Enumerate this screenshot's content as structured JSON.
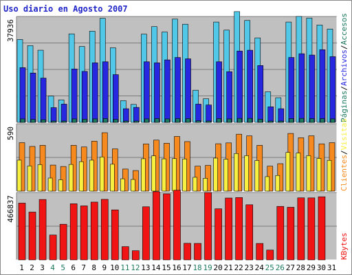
{
  "title": "Uso diario en Agosto 2007",
  "colors": {
    "paginas": "#1c7a5e",
    "archivos": "#2727e0",
    "accesos": "#52c8e8",
    "visitas": "#f78a1e",
    "clientes": "#f8f040",
    "kbytes": "#f01414",
    "weekend_day": "#1c7a5e",
    "weekday": "#000000",
    "panel_bg": "#c0c0c0"
  },
  "chart_data": [
    {
      "type": "bar",
      "panel": "top",
      "ytick": "37936",
      "ymax": 37936,
      "legend": [
        "Páginas",
        "/",
        "Archivos",
        "/",
        "Accesos"
      ],
      "categories": [
        "1",
        "2",
        "3",
        "4",
        "5",
        "6",
        "7",
        "8",
        "9",
        "10",
        "11",
        "12",
        "13",
        "14",
        "15",
        "16",
        "17",
        "18",
        "19",
        "20",
        "21",
        "22",
        "23",
        "24",
        "25",
        "26",
        "27",
        "28",
        "29",
        "30",
        "31"
      ],
      "series": [
        {
          "name": "Accesos",
          "values": [
            30900,
            28600,
            26900,
            9800,
            8400,
            33000,
            28300,
            34000,
            38800,
            27800,
            8100,
            6700,
            32900,
            35700,
            33700,
            38500,
            36600,
            12000,
            8800,
            37400,
            34400,
            41300,
            38000,
            31500,
            11400,
            9200,
            37400,
            39500,
            38900,
            36300,
            34800
          ]
        },
        {
          "name": "Archivos",
          "values": [
            20400,
            18400,
            16500,
            5500,
            6800,
            19900,
            19000,
            22200,
            22600,
            17800,
            5100,
            5600,
            22600,
            22200,
            23300,
            24200,
            23700,
            6800,
            6500,
            22600,
            18900,
            26600,
            26900,
            21200,
            5800,
            5100,
            24200,
            25600,
            25100,
            27100,
            24500
          ]
        },
        {
          "name": "Páginas",
          "values": [
            1300,
            1100,
            1000,
            500,
            500,
            1300,
            1200,
            1300,
            1400,
            1100,
            500,
            400,
            1300,
            1400,
            1300,
            1400,
            1400,
            600,
            500,
            1400,
            1300,
            1500,
            1500,
            1200,
            500,
            500,
            1400,
            1500,
            1400,
            1400,
            1300
          ]
        }
      ]
    },
    {
      "type": "bar",
      "panel": "middle",
      "ytick": "590",
      "ymax": 590,
      "legend": [
        "Clientes",
        "/",
        "Visitas"
      ],
      "categories": [
        "1",
        "2",
        "3",
        "4",
        "5",
        "6",
        "7",
        "8",
        "9",
        "10",
        "11",
        "12",
        "13",
        "14",
        "15",
        "16",
        "17",
        "18",
        "19",
        "20",
        "21",
        "22",
        "23",
        "24",
        "25",
        "26",
        "27",
        "28",
        "29",
        "30",
        "31"
      ],
      "series": [
        {
          "name": "Visitas",
          "values": [
            452,
            417,
            427,
            243,
            230,
            427,
            412,
            466,
            545,
            394,
            206,
            192,
            440,
            476,
            447,
            510,
            462,
            233,
            240,
            442,
            450,
            531,
            515,
            427,
            233,
            256,
            538,
            498,
            516,
            441,
            452
          ]
        },
        {
          "name": "Clientes",
          "values": [
            289,
            235,
            247,
            122,
            106,
            249,
            275,
            289,
            319,
            251,
            115,
            109,
            302,
            329,
            301,
            303,
            300,
            129,
            120,
            308,
            298,
            351,
            331,
            286,
            135,
            146,
            361,
            355,
            331,
            305,
            287
          ]
        }
      ]
    },
    {
      "type": "bar",
      "panel": "bottom",
      "ytick": "466837",
      "ymax": 466837,
      "legend": [
        "KBytes"
      ],
      "categories": [
        "1",
        "2",
        "3",
        "4",
        "5",
        "6",
        "7",
        "8",
        "9",
        "10",
        "11",
        "12",
        "13",
        "14",
        "15",
        "16",
        "17",
        "18",
        "19",
        "20",
        "21",
        "22",
        "23",
        "24",
        "25",
        "26",
        "27",
        "28",
        "29",
        "30",
        "31"
      ],
      "series": [
        {
          "name": "KBytes",
          "values": [
            418800,
            352800,
            445800,
            183600,
            263000,
            414200,
            398600,
            426500,
            446800,
            369100,
            97800,
            67500,
            391900,
            503000,
            487500,
            513900,
            122400,
            121600,
            497000,
            376900,
            456500,
            459900,
            406800,
            121300,
            72300,
            394700,
            388400,
            457900,
            457500,
            465900,
            0
          ]
        }
      ]
    }
  ],
  "x_labels": [
    {
      "label": "1",
      "weekend": false
    },
    {
      "label": "2",
      "weekend": false
    },
    {
      "label": "3",
      "weekend": false
    },
    {
      "label": "4",
      "weekend": true
    },
    {
      "label": "5",
      "weekend": true
    },
    {
      "label": "6",
      "weekend": false
    },
    {
      "label": "7",
      "weekend": false
    },
    {
      "label": "8",
      "weekend": false
    },
    {
      "label": "9",
      "weekend": false
    },
    {
      "label": "10",
      "weekend": false
    },
    {
      "label": "11",
      "weekend": true
    },
    {
      "label": "12",
      "weekend": true
    },
    {
      "label": "13",
      "weekend": false
    },
    {
      "label": "14",
      "weekend": false
    },
    {
      "label": "15",
      "weekend": false
    },
    {
      "label": "16",
      "weekend": false
    },
    {
      "label": "17",
      "weekend": false
    },
    {
      "label": "18",
      "weekend": true
    },
    {
      "label": "19",
      "weekend": true
    },
    {
      "label": "20",
      "weekend": false
    },
    {
      "label": "21",
      "weekend": false
    },
    {
      "label": "22",
      "weekend": false
    },
    {
      "label": "23",
      "weekend": false
    },
    {
      "label": "24",
      "weekend": false
    },
    {
      "label": "25",
      "weekend": true
    },
    {
      "label": "26",
      "weekend": true
    },
    {
      "label": "27",
      "weekend": false
    },
    {
      "label": "28",
      "weekend": false
    },
    {
      "label": "29",
      "weekend": false
    },
    {
      "label": "30",
      "weekend": false
    },
    {
      "label": "31",
      "weekend": false
    }
  ]
}
